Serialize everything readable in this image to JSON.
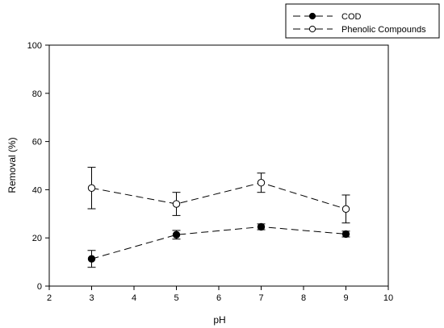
{
  "chart_data": {
    "type": "line",
    "xlabel": "pH",
    "ylabel": "Removal (%)",
    "xlim": [
      2,
      10
    ],
    "ylim": [
      0,
      100
    ],
    "x_ticks": [
      "2",
      "3",
      "4",
      "5",
      "6",
      "7",
      "8",
      "9",
      "10"
    ],
    "y_ticks": [
      "0",
      "20",
      "40",
      "60",
      "80",
      "100"
    ],
    "grid": false,
    "legend_position": "top-right",
    "series": [
      {
        "name": "COD",
        "marker": "filled-circle",
        "line_style": "dashed",
        "color": "#000000",
        "x": [
          3,
          5,
          7,
          9
        ],
        "y": [
          11.3,
          21.3,
          24.6,
          21.6
        ],
        "error": [
          3.5,
          1.8,
          1.2,
          1.2
        ]
      },
      {
        "name": "Phenolic Compounds",
        "marker": "open-circle",
        "line_style": "dashed",
        "color": "#000000",
        "x": [
          3,
          5,
          7,
          9
        ],
        "y": [
          40.7,
          34.1,
          42.9,
          32.0
        ],
        "error": [
          8.6,
          4.8,
          4.0,
          5.8
        ]
      }
    ]
  }
}
